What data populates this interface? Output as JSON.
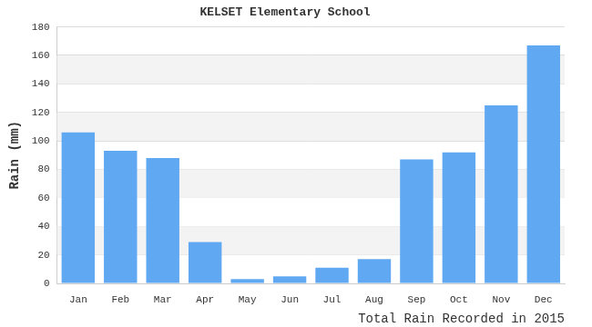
{
  "chart_data": {
    "type": "bar",
    "title": "KELSET Elementary School",
    "ylabel": "Rain (mm)",
    "xlabel": "Total Rain Recorded in 2015",
    "categories": [
      "Jan",
      "Feb",
      "Mar",
      "Apr",
      "May",
      "Jun",
      "Jul",
      "Aug",
      "Sep",
      "Oct",
      "Nov",
      "Dec"
    ],
    "values": [
      106,
      93,
      88,
      29,
      3,
      5,
      11,
      17,
      87,
      92,
      125,
      167
    ],
    "color": "#60a8f2",
    "ylim": [
      0,
      180
    ],
    "yticks": [
      0,
      20,
      40,
      60,
      80,
      100,
      120,
      140,
      160,
      180
    ],
    "grid": true
  }
}
